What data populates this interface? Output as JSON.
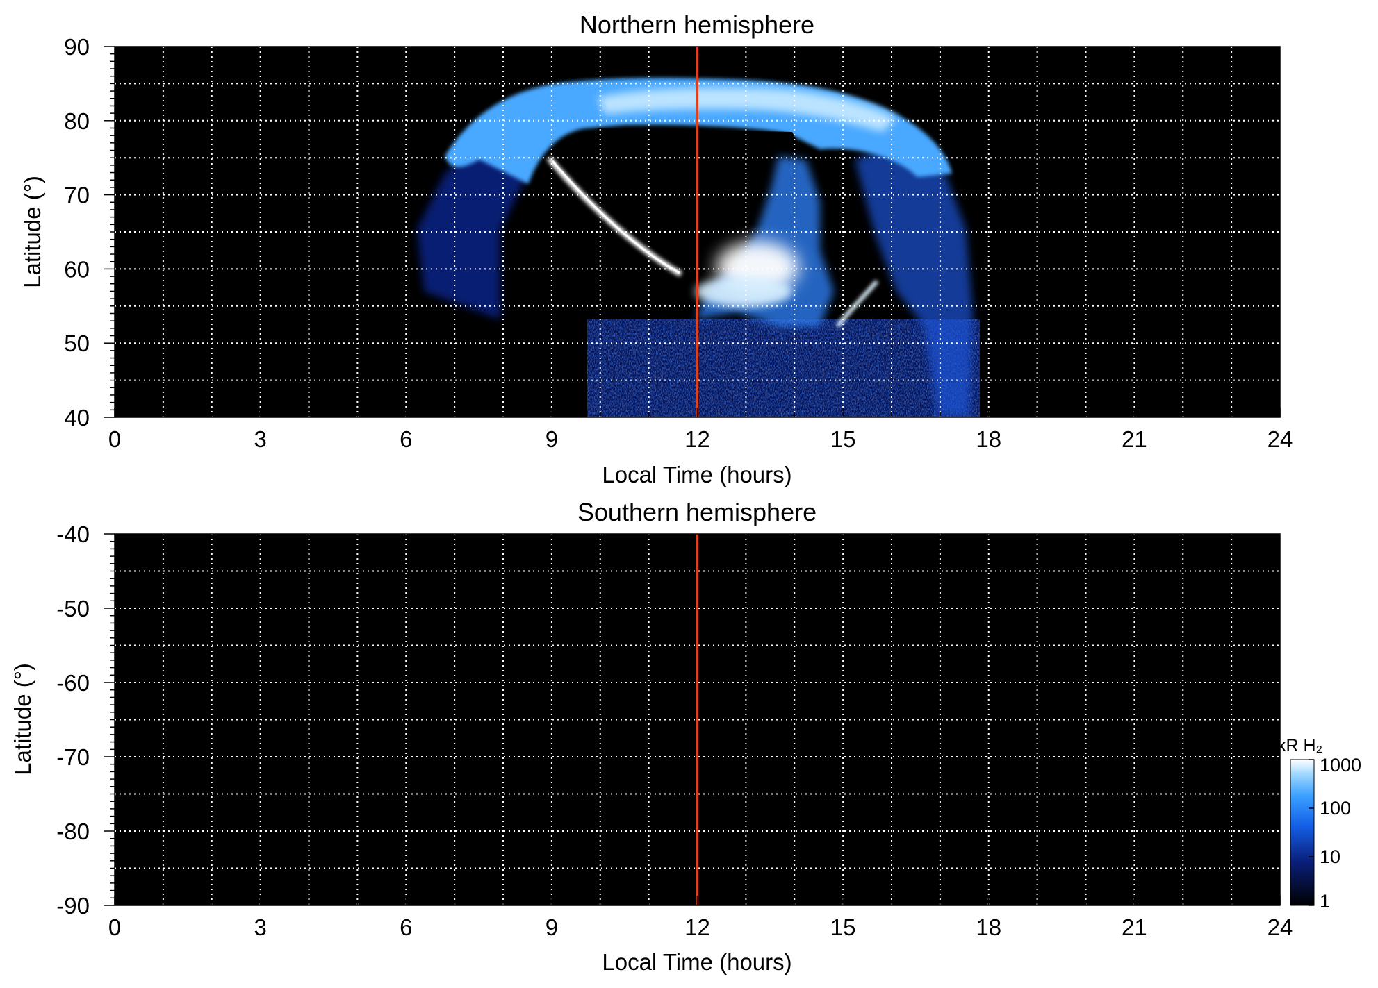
{
  "chart_data": [
    {
      "type": "heatmap",
      "title": "Northern hemisphere",
      "xlabel": "Local Time (hours)",
      "ylabel": "Latitude (°)",
      "xlim": [
        0,
        24
      ],
      "ylim": [
        40,
        90
      ],
      "xticks": [
        "0",
        "3",
        "6",
        "9",
        "12",
        "15",
        "18",
        "21",
        "24"
      ],
      "xtick_values": [
        0,
        3,
        6,
        9,
        12,
        15,
        18,
        21,
        24
      ],
      "yticks": [
        "40",
        "50",
        "60",
        "70",
        "80",
        "90"
      ],
      "ytick_values": [
        40,
        50,
        60,
        70,
        80,
        90
      ],
      "grid": true,
      "reference_line": {
        "x": 12,
        "color": "#e0401c"
      },
      "emission": {
        "coverage_local_time": [
          6.2,
          17.6
        ],
        "main_oval_latitude": [
          77,
          86
        ],
        "arc_dawn": {
          "from": [
            9.0,
            74.5
          ],
          "to": [
            11.8,
            59.5
          ]
        },
        "dayside_spot": {
          "local_time": 13.2,
          "latitude": 61
        },
        "arc_afternoon": {
          "from": [
            14.8,
            52
          ],
          "to": [
            15.5,
            58
          ]
        },
        "low_latitude_noise": {
          "local_time": [
            9.7,
            17.5
          ],
          "latitude": [
            40,
            52
          ]
        }
      }
    },
    {
      "type": "heatmap",
      "title": "Southern hemisphere",
      "xlabel": "Local Time (hours)",
      "ylabel": "Latitude (°)",
      "xlim": [
        0,
        24
      ],
      "ylim": [
        -90,
        -40
      ],
      "xticks": [
        "0",
        "3",
        "6",
        "9",
        "12",
        "15",
        "18",
        "21",
        "24"
      ],
      "xtick_values": [
        0,
        3,
        6,
        9,
        12,
        15,
        18,
        21,
        24
      ],
      "yticks": [
        "-40",
        "-50",
        "-60",
        "-70",
        "-80",
        "-90"
      ],
      "ytick_values": [
        -40,
        -50,
        -60,
        -70,
        -80,
        -90
      ],
      "grid": true,
      "reference_line": {
        "x": 12,
        "color": "#e0401c"
      },
      "emission": null
    }
  ],
  "colorbar": {
    "label": "kR H₂",
    "scale": "log",
    "range": [
      1,
      1000
    ],
    "ticks": [
      "1000",
      "100",
      "10",
      "1"
    ],
    "tick_values": [
      1000,
      100,
      10,
      1
    ],
    "colors": [
      "#000000",
      "#0a1f7a",
      "#1560e8",
      "#3aa0ff",
      "#a0d8ff",
      "#ffffff"
    ]
  }
}
